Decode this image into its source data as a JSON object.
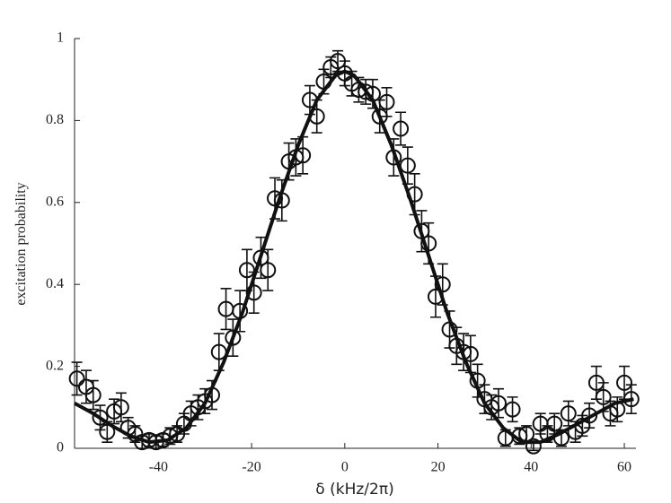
{
  "chart_data": {
    "type": "scatter",
    "xlabel": "δ (kHz/2π)",
    "ylabel": "excitation probability",
    "color": "#111111",
    "x": [
      -57.5,
      -55.5,
      -54,
      -52.5,
      -51,
      -49.5,
      -48,
      -46.5,
      -45,
      -43.5,
      -42,
      -40.5,
      -39,
      -37.5,
      -36,
      -34.5,
      -33,
      -31.5,
      -30,
      -28.5,
      -27,
      -25.5,
      -24,
      -22.5,
      -21,
      -19.5,
      -18,
      -16.5,
      -15,
      -13.5,
      -12,
      -10.5,
      -9,
      -7.5,
      -6,
      -4.5,
      -3,
      -1.5,
      0,
      1.5,
      3,
      4.5,
      6,
      7.5,
      9,
      10.5,
      12,
      13.5,
      15,
      16.5,
      18,
      19.5,
      21,
      22.5,
      24,
      25.5,
      27,
      28.5,
      30,
      31.5,
      33,
      34.5,
      36,
      37.5,
      39,
      40.5,
      42,
      43.5,
      45,
      46.5,
      48,
      49.5,
      51,
      52.5,
      54,
      55.5,
      57,
      58.5,
      60,
      61.5
    ],
    "values": [
      0.17,
      0.15,
      0.13,
      0.075,
      0.04,
      0.09,
      0.1,
      0.05,
      0.035,
      0.015,
      0.02,
      0.015,
      0.02,
      0.03,
      0.035,
      0.06,
      0.085,
      0.1,
      0.115,
      0.13,
      0.235,
      0.34,
      0.27,
      0.335,
      0.435,
      0.38,
      0.465,
      0.435,
      0.61,
      0.605,
      0.7,
      0.71,
      0.715,
      0.85,
      0.81,
      0.895,
      0.93,
      0.945,
      0.915,
      0.89,
      0.875,
      0.87,
      0.865,
      0.81,
      0.845,
      0.71,
      0.78,
      0.69,
      0.62,
      0.53,
      0.5,
      0.37,
      0.4,
      0.29,
      0.25,
      0.235,
      0.23,
      0.165,
      0.12,
      0.1,
      0.11,
      0.025,
      0.095,
      0.03,
      0.035,
      0.005,
      0.06,
      0.035,
      0.06,
      0.025,
      0.085,
      0.04,
      0.055,
      0.08,
      0.16,
      0.125,
      0.085,
      0.095,
      0.16,
      0.12
    ],
    "errors": [
      0.04,
      0.04,
      0.035,
      0.03,
      0.025,
      0.03,
      0.035,
      0.025,
      0.02,
      0.015,
      0.015,
      0.015,
      0.015,
      0.02,
      0.02,
      0.025,
      0.03,
      0.03,
      0.03,
      0.035,
      0.045,
      0.05,
      0.045,
      0.05,
      0.05,
      0.05,
      0.05,
      0.05,
      0.05,
      0.05,
      0.045,
      0.045,
      0.045,
      0.035,
      0.04,
      0.03,
      0.025,
      0.025,
      0.03,
      0.03,
      0.03,
      0.03,
      0.035,
      0.04,
      0.035,
      0.045,
      0.04,
      0.045,
      0.05,
      0.05,
      0.05,
      0.05,
      0.05,
      0.045,
      0.045,
      0.045,
      0.045,
      0.04,
      0.035,
      0.03,
      0.035,
      0.02,
      0.03,
      0.02,
      0.02,
      0.01,
      0.025,
      0.02,
      0.025,
      0.02,
      0.03,
      0.025,
      0.025,
      0.03,
      0.04,
      0.035,
      0.03,
      0.03,
      0.04,
      0.035
    ],
    "fit": {
      "x": [
        -58,
        -54,
        -50,
        -46,
        -42,
        -38,
        -34,
        -30,
        -26,
        -22,
        -18,
        -14,
        -10,
        -6,
        -2,
        0,
        2,
        6,
        10,
        14,
        18,
        22,
        26,
        30,
        34,
        38,
        42,
        46,
        50,
        54,
        58,
        62
      ],
      "values": [
        0.11,
        0.085,
        0.055,
        0.03,
        0.015,
        0.02,
        0.05,
        0.11,
        0.21,
        0.33,
        0.47,
        0.61,
        0.74,
        0.85,
        0.91,
        0.92,
        0.91,
        0.85,
        0.74,
        0.61,
        0.47,
        0.33,
        0.21,
        0.11,
        0.05,
        0.015,
        0.015,
        0.035,
        0.06,
        0.085,
        0.11,
        0.12
      ]
    },
    "xlim": [
      -58,
      62.5
    ],
    "ylim": [
      0,
      1
    ],
    "xticks": [
      -40,
      -20,
      0,
      20,
      40,
      60
    ],
    "yticks": [
      0,
      0.2,
      0.4,
      0.6,
      0.8,
      1
    ]
  }
}
